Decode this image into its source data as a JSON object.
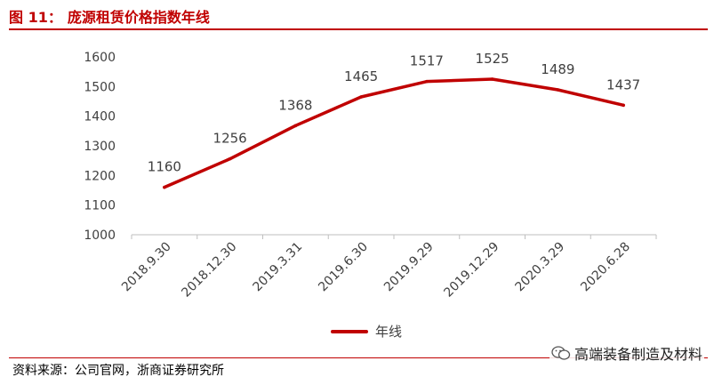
{
  "figure": {
    "label": "图 11：",
    "title": "庞源租赁价格指数年线"
  },
  "source": "资料来源：公司官网，浙商证券研究所",
  "watermark": "高端装备制造及材料",
  "colors": {
    "accent": "#c00000",
    "axis": "#bfbfbf",
    "text": "#404040"
  },
  "chart_data": {
    "type": "line",
    "categories": [
      "2018.9.30",
      "2018.12.30",
      "2019.3.31",
      "2019.6.30",
      "2019.9.29",
      "2019.12.29",
      "2020.3.29",
      "2020.6.28"
    ],
    "series": [
      {
        "name": "年线",
        "values": [
          1160,
          1256,
          1368,
          1465,
          1517,
          1525,
          1489,
          1437
        ]
      }
    ],
    "yticks": [
      1000,
      1100,
      1200,
      1300,
      1400,
      1500,
      1600
    ],
    "ylim": [
      1000,
      1600
    ],
    "grid": false,
    "legend_position": "bottom-center",
    "data_labels": true
  }
}
